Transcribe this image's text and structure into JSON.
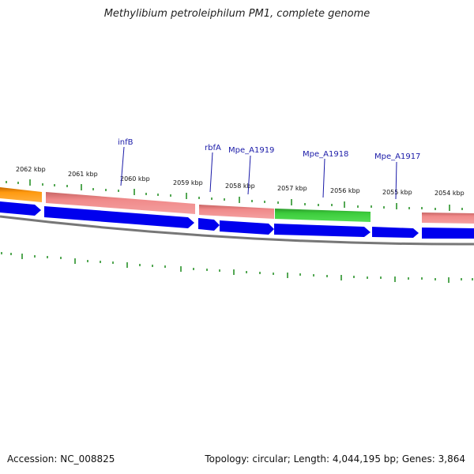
{
  "title": "Methylibium petroleiphilum PM1, complete genome",
  "accession_text": "Accession: NC_008825",
  "summary_text": "Topology: circular; Length: 4,044,195 bp; Genes: 3,864",
  "colors": {
    "cds_forward": "#0000ee",
    "feature_pink": "#f08080",
    "feature_green": "#33cc33",
    "feature_orange": "#ff9900",
    "backbone": "#777777",
    "ticks": "#1a8a1a",
    "labels": "#1a1aa8"
  },
  "scale_labels": [
    "2062 kbp",
    "2061 kbp",
    "2060 kbp",
    "2059 kbp",
    "2058 kbp",
    "2057 kbp",
    "2056 kbp",
    "2055 kbp",
    "2054 kbp"
  ],
  "gene_labels": [
    "infB",
    "rbfA",
    "Mpe_A1919",
    "Mpe_A1918",
    "Mpe_A1917"
  ]
}
